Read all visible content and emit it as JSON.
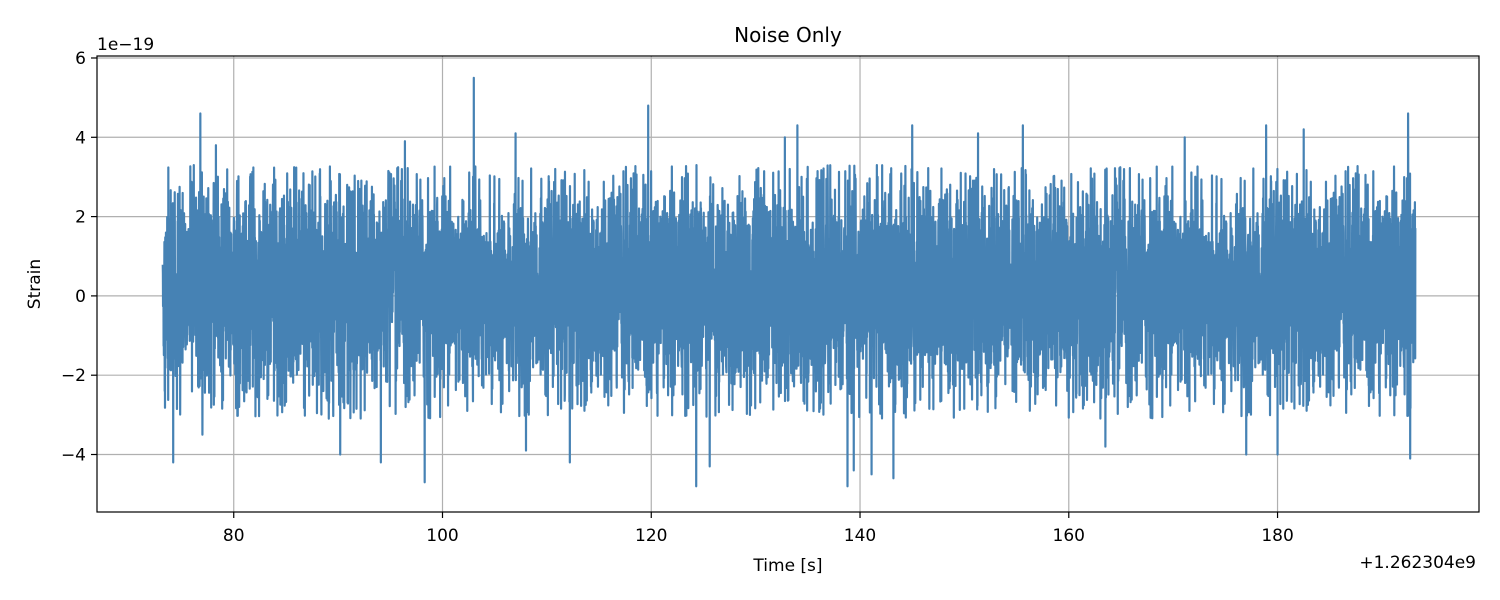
{
  "chart_data": {
    "type": "line",
    "title": "Noise Only",
    "xlabel": "Time [s]",
    "ylabel": "Strain",
    "x_offset_label": "+1.262304e9",
    "y_scale_label": "1e−19",
    "xlim": [
      66.9,
      199.3
    ],
    "ylim": [
      -5.45,
      6.05
    ],
    "x_ticks": [
      80,
      100,
      120,
      140,
      160,
      180
    ],
    "x_tick_labels": [
      "80",
      "100",
      "120",
      "140",
      "160",
      "180"
    ],
    "y_ticks": [
      -4,
      -2,
      0,
      2,
      4,
      6
    ],
    "y_tick_labels": [
      "−4",
      "−2",
      "0",
      "2",
      "4",
      "6"
    ],
    "grid": true,
    "legend": "none",
    "series": [
      {
        "color": "#4682b4",
        "x_range": [
          73.2,
          193.2
        ],
        "typical_envelope": [
          -2.0,
          2.3
        ],
        "peaks": [
          {
            "x": 76.8,
            "y": 4.6
          },
          {
            "x": 77.0,
            "y": -3.5
          },
          {
            "x": 78.3,
            "y": 3.8
          },
          {
            "x": 74.2,
            "y": -4.2
          },
          {
            "x": 90.2,
            "y": -4.0
          },
          {
            "x": 94.1,
            "y": -4.2
          },
          {
            "x": 96.4,
            "y": 3.9
          },
          {
            "x": 98.3,
            "y": -4.7
          },
          {
            "x": 103.0,
            "y": 5.5
          },
          {
            "x": 107.0,
            "y": 4.1
          },
          {
            "x": 108.0,
            "y": -3.9
          },
          {
            "x": 112.2,
            "y": -4.2
          },
          {
            "x": 119.7,
            "y": 4.8
          },
          {
            "x": 124.3,
            "y": -4.8
          },
          {
            "x": 125.6,
            "y": -4.3
          },
          {
            "x": 132.8,
            "y": 4.0
          },
          {
            "x": 134.0,
            "y": 4.3
          },
          {
            "x": 138.8,
            "y": -4.8
          },
          {
            "x": 139.4,
            "y": -4.4
          },
          {
            "x": 141.1,
            "y": -4.5
          },
          {
            "x": 143.2,
            "y": -4.6
          },
          {
            "x": 145.0,
            "y": 4.3
          },
          {
            "x": 151.3,
            "y": 4.1
          },
          {
            "x": 155.6,
            "y": 4.3
          },
          {
            "x": 163.5,
            "y": -3.8
          },
          {
            "x": 171.1,
            "y": 4.0
          },
          {
            "x": 177.0,
            "y": -4.0
          },
          {
            "x": 178.9,
            "y": 4.3
          },
          {
            "x": 180.0,
            "y": -4.0
          },
          {
            "x": 182.5,
            "y": 4.2
          },
          {
            "x": 192.5,
            "y": 4.6
          },
          {
            "x": 192.7,
            "y": -4.1
          }
        ]
      }
    ]
  }
}
